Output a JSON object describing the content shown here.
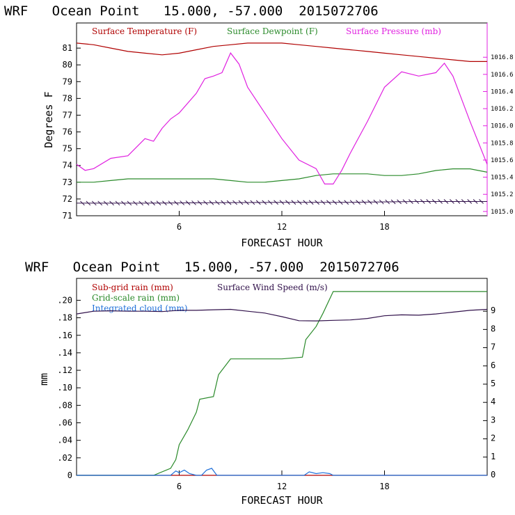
{
  "chart_data": [
    {
      "type": "line",
      "title": "WRF   Ocean Point   15.000, -57.000  2015072706",
      "xlabel": "FORECAST HOUR",
      "ylabel": "Degrees F",
      "xlim": [
        0,
        24
      ],
      "ylim": [
        71,
        82.5
      ],
      "x_ticks": [
        "6",
        "12",
        "18"
      ],
      "y_ticks": [
        "71",
        "72",
        "73",
        "74",
        "75",
        "76",
        "77",
        "78",
        "79",
        "80",
        "81"
      ],
      "y2lim": [
        1014.95,
        1017.2
      ],
      "y2_ticks": [
        "1015.0",
        "1015.2",
        "1015.4",
        "1015.6",
        "1015.8",
        "1016.0",
        "1016.2",
        "1016.4",
        "1016.6",
        "1016.8"
      ],
      "grid": false,
      "legend_position": "top",
      "colors": {
        "temperature": "#b00000",
        "dewpoint": "#2a8a2a",
        "pressure": "#e020e0",
        "wind": "#30104a"
      },
      "series": [
        {
          "name": "Surface Temperature (F)",
          "axis": "left",
          "color": "#b00000",
          "x": [
            0,
            1,
            2,
            3,
            4,
            5,
            6,
            7,
            8,
            9,
            10,
            11,
            12,
            13,
            14,
            15,
            16,
            17,
            18,
            19,
            20,
            21,
            22,
            23,
            24
          ],
          "y": [
            81.3,
            81.2,
            81.0,
            80.8,
            80.7,
            80.6,
            80.7,
            80.9,
            81.1,
            81.2,
            81.3,
            81.3,
            81.3,
            81.2,
            81.1,
            81.0,
            80.9,
            80.8,
            80.7,
            80.6,
            80.5,
            80.4,
            80.3,
            80.2,
            80.2
          ]
        },
        {
          "name": "Surface Dewpoint (F)",
          "axis": "left",
          "color": "#2a8a2a",
          "x": [
            0,
            1,
            2,
            3,
            4,
            5,
            6,
            7,
            8,
            9,
            10,
            11,
            12,
            13,
            14,
            15,
            16,
            17,
            18,
            19,
            20,
            21,
            22,
            23,
            24
          ],
          "y": [
            73.0,
            73.0,
            73.1,
            73.2,
            73.2,
            73.2,
            73.2,
            73.2,
            73.2,
            73.1,
            73.0,
            73.0,
            73.1,
            73.2,
            73.4,
            73.5,
            73.5,
            73.5,
            73.4,
            73.4,
            73.5,
            73.7,
            73.8,
            73.8,
            73.6
          ]
        },
        {
          "name": "Surface Pressure (mb)",
          "axis": "right",
          "color": "#e020e0",
          "x": [
            0,
            0.5,
            1,
            2,
            3,
            4,
            4.5,
            5,
            5.5,
            6,
            7,
            7.5,
            8,
            8.5,
            9,
            9.5,
            10,
            11,
            12,
            13,
            14,
            14.5,
            15,
            15.5,
            16,
            17,
            18,
            19,
            20,
            21,
            21.5,
            22,
            23,
            24
          ],
          "y": [
            1015.55,
            1015.48,
            1015.5,
            1015.62,
            1015.65,
            1015.85,
            1015.82,
            1015.97,
            1016.08,
            1016.15,
            1016.38,
            1016.55,
            1016.58,
            1016.62,
            1016.85,
            1016.72,
            1016.45,
            1016.15,
            1015.85,
            1015.6,
            1015.5,
            1015.32,
            1015.32,
            1015.48,
            1015.68,
            1016.05,
            1016.45,
            1016.63,
            1016.58,
            1016.62,
            1016.73,
            1016.58,
            1016.05,
            1015.55
          ]
        },
        {
          "name": "",
          "axis": "left",
          "color": "#30104a",
          "x": [
            0,
            4,
            8,
            12,
            16,
            20,
            24
          ],
          "y": [
            71.75,
            71.75,
            71.78,
            71.8,
            71.8,
            71.85,
            71.85
          ]
        }
      ]
    },
    {
      "type": "line",
      "title": "WRF   Ocean Point   15.000, -57.000  2015072706",
      "xlabel": "FORECAST HOUR",
      "ylabel": "mm",
      "xlim": [
        0,
        24
      ],
      "ylim": [
        0,
        0.225
      ],
      "x_ticks": [
        "6",
        "12",
        "18"
      ],
      "y_ticks": [
        "0",
        ".02",
        ".04",
        ".06",
        ".08",
        ".10",
        ".12",
        ".14",
        ".16",
        ".18",
        ".20"
      ],
      "y2lim": [
        0,
        10.8
      ],
      "y2_ticks": [
        "0",
        "1",
        "2",
        "3",
        "4",
        "5",
        "6",
        "7",
        "8",
        "9"
      ],
      "grid": false,
      "legend_position": "top",
      "colors": {
        "subgrid": "#b00000",
        "gridscale": "#2a8a2a",
        "cloud": "#1e6fd9",
        "wind": "#30104a"
      },
      "series": [
        {
          "name": "Sub-grid rain (mm)",
          "axis": "left",
          "color": "#b00000",
          "x": [
            0,
            24
          ],
          "y": [
            0,
            0
          ]
        },
        {
          "name": "Grid-scale rain (mm)",
          "axis": "left",
          "color": "#2a8a2a",
          "x": [
            0,
            4.5,
            5.5,
            5.8,
            6,
            6.5,
            7,
            7.2,
            8,
            8.3,
            9,
            10,
            12,
            13.2,
            13.4,
            14,
            14.4,
            15,
            15.5,
            16,
            18,
            20,
            24
          ],
          "y": [
            0,
            0,
            0.008,
            0.018,
            0.035,
            0.052,
            0.072,
            0.087,
            0.09,
            0.115,
            0.133,
            0.133,
            0.133,
            0.135,
            0.155,
            0.17,
            0.185,
            0.21,
            0.21,
            0.21,
            0.21,
            0.21,
            0.21
          ]
        },
        {
          "name": "Integrated cloud (mm)",
          "axis": "left",
          "color": "#1e6fd9",
          "x": [
            0,
            5.5,
            5.8,
            6,
            6.3,
            6.6,
            7,
            7.3,
            7.6,
            7.9,
            8.2,
            12,
            13.3,
            13.6,
            14,
            14.4,
            14.8,
            15,
            24
          ],
          "y": [
            0,
            0,
            0.005,
            0.003,
            0.006,
            0.002,
            0,
            0,
            0.006,
            0.008,
            0,
            0,
            0,
            0.004,
            0.002,
            0.003,
            0.002,
            0,
            0
          ]
        },
        {
          "name": "Surface Wind Speed (m/s)",
          "axis": "right",
          "color": "#30104a",
          "x": [
            0,
            1,
            2,
            3,
            4,
            5,
            6,
            7,
            8,
            9,
            10,
            11,
            12,
            13,
            14,
            15,
            16,
            17,
            18,
            19,
            20,
            21,
            22,
            23,
            24
          ],
          "y": [
            8.85,
            9.0,
            9.02,
            9.0,
            9.0,
            8.98,
            9.05,
            9.05,
            9.08,
            9.1,
            9.0,
            8.9,
            8.7,
            8.48,
            8.47,
            8.5,
            8.52,
            8.6,
            8.75,
            8.8,
            8.78,
            8.85,
            8.95,
            9.05,
            9.1
          ]
        }
      ]
    }
  ]
}
